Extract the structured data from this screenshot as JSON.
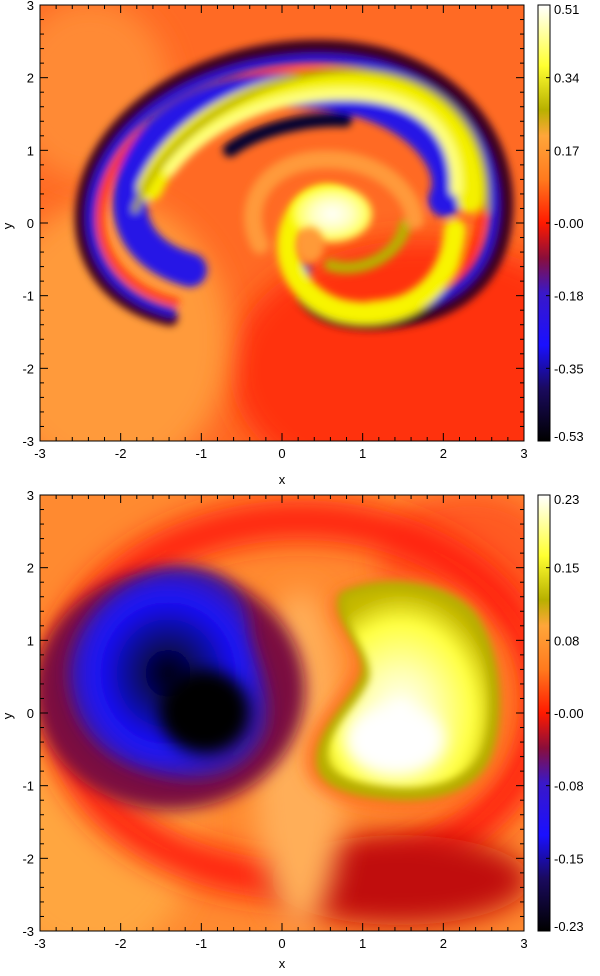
{
  "colormap": {
    "stops": [
      [
        0.0,
        "#000000"
      ],
      [
        0.12,
        "#1a0a5e"
      ],
      [
        0.22,
        "#1a10ff"
      ],
      [
        0.34,
        "#3a18c8"
      ],
      [
        0.42,
        "#8a0e3a"
      ],
      [
        0.5,
        "#ff1a00"
      ],
      [
        0.6,
        "#ff7a1e"
      ],
      [
        0.7,
        "#ffa63a"
      ],
      [
        0.76,
        "#b8b000"
      ],
      [
        0.86,
        "#ffff30"
      ],
      [
        1.0,
        "#ffffff"
      ]
    ]
  },
  "chart_data": [
    {
      "type": "heatmap",
      "title": "",
      "xlabel": "x",
      "ylabel": "y",
      "xlim": [
        -3,
        3
      ],
      "ylim": [
        -3,
        3
      ],
      "xticks": [
        "-3",
        "-2",
        "-1",
        "0",
        "1",
        "2",
        "3"
      ],
      "yticks": [
        "-3",
        "-2",
        "-1",
        "0",
        "1",
        "2",
        "3"
      ],
      "colorbar": {
        "range": [
          -0.53,
          0.51
        ],
        "tick_labels": [
          "0.51",
          "0.34",
          "0.17",
          "-0.00",
          "-0.18",
          "-0.35",
          "-0.53"
        ]
      },
      "features": [
        {
          "kind": "background",
          "value": -0.02
        },
        {
          "kind": "spiral-arm",
          "description": "outer thin blue/red filament",
          "sign": "negative",
          "value": -0.4
        },
        {
          "kind": "spiral-arm",
          "description": "yellow arm across top",
          "sign": "positive",
          "value": 0.35
        },
        {
          "kind": "core",
          "x": 0.7,
          "y": 0.3,
          "value": 0.51
        },
        {
          "kind": "core",
          "x": -0.8,
          "y": 1.4,
          "value": -0.53
        }
      ]
    },
    {
      "type": "heatmap",
      "title": "",
      "xlabel": "x",
      "ylabel": "y",
      "xlim": [
        -3,
        3
      ],
      "ylim": [
        -3,
        3
      ],
      "xticks": [
        "-3",
        "-2",
        "-1",
        "0",
        "1",
        "2",
        "3"
      ],
      "yticks": [
        "-3",
        "-2",
        "-1",
        "0",
        "1",
        "2",
        "3"
      ],
      "colorbar": {
        "range": [
          -0.23,
          0.23
        ],
        "tick_labels": [
          "0.23",
          "0.15",
          "0.08",
          "-0.00",
          "-0.08",
          "-0.15",
          "-0.23"
        ]
      },
      "features": [
        {
          "kind": "negative-lobe",
          "x": -1.1,
          "y": 0.1,
          "value": -0.23
        },
        {
          "kind": "positive-lobe",
          "x": 1.5,
          "y": -0.5,
          "value": 0.23
        }
      ]
    }
  ]
}
